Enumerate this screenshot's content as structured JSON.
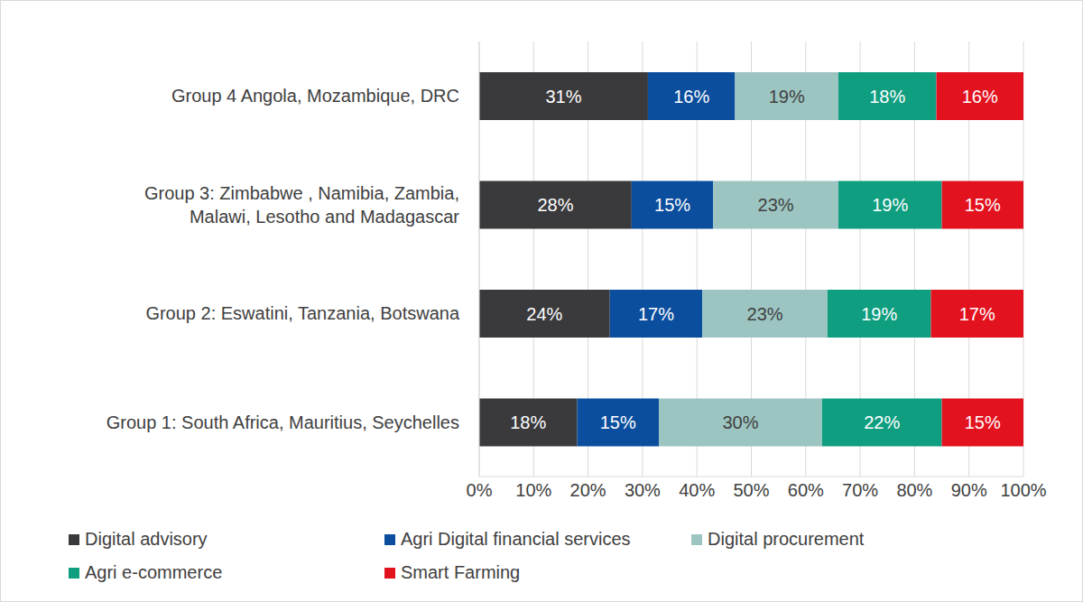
{
  "chart_data": {
    "type": "bar",
    "orientation": "horizontal",
    "stacked": true,
    "data_labels": true,
    "grid": true,
    "legend": "bottom",
    "categories": [
      "Group 4 Angola, Mozambique, DRC",
      "Group 3: Zimbabwe , Namibia, Zambia, Malawi, Lesotho and Madagascar",
      "Group 2: Eswatini, Tanzania, Botswana",
      "Group 1: South Africa, Mauritius, Seychelles"
    ],
    "series": [
      {
        "name": "Digital advisory",
        "color": "#3a3a3c",
        "values": [
          31,
          28,
          24,
          18
        ],
        "value_labels": [
          "31%",
          "28%",
          "24%",
          "18%"
        ]
      },
      {
        "name": "Agri Digital financial services",
        "color": "#0b4e9e",
        "values": [
          16,
          15,
          17,
          15
        ],
        "value_labels": [
          "16%",
          "15%",
          "17%",
          "15%"
        ]
      },
      {
        "name": "Digital procurement",
        "color": "#9cc5c1",
        "values": [
          19,
          23,
          23,
          30
        ],
        "value_labels": [
          "19%",
          "23%",
          "23%",
          "30%"
        ]
      },
      {
        "name": "Agri e-commerce",
        "color": "#0f9e80",
        "values": [
          18,
          19,
          19,
          22
        ],
        "value_labels": [
          "18%",
          "19%",
          "19%",
          "22%"
        ]
      },
      {
        "name": "Smart Farming",
        "color": "#e3121f",
        "values": [
          16,
          15,
          17,
          15
        ],
        "value_labels": [
          "16%",
          "15%",
          "17%",
          "15%"
        ]
      }
    ],
    "xlim": [
      0,
      100
    ],
    "xticks": [
      {
        "value": 0,
        "label": "0%"
      },
      {
        "value": 10,
        "label": "10%"
      },
      {
        "value": 20,
        "label": "20%"
      },
      {
        "value": 30,
        "label": "30%"
      },
      {
        "value": 40,
        "label": "40%"
      },
      {
        "value": 50,
        "label": "50%"
      },
      {
        "value": 60,
        "label": "60%"
      },
      {
        "value": 70,
        "label": "70%"
      },
      {
        "value": 80,
        "label": "80%"
      },
      {
        "value": 90,
        "label": "90%"
      },
      {
        "value": 100,
        "label": "100%"
      }
    ]
  }
}
